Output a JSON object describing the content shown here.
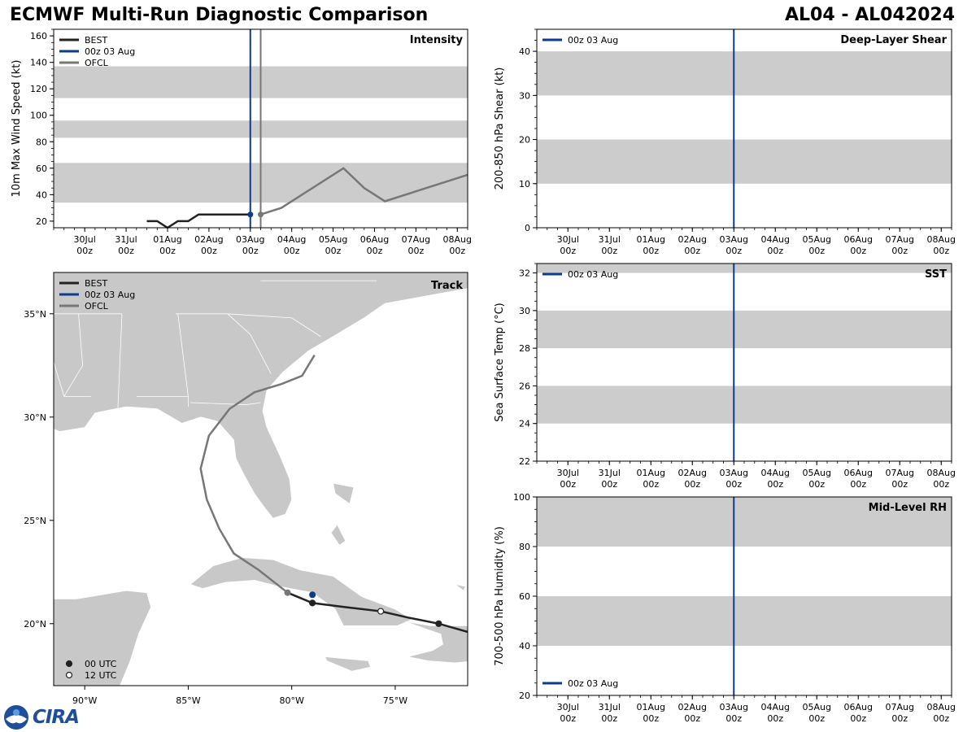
{
  "header": {
    "title": "ECMWF Multi-Run Diagnostic Comparison",
    "storm_id": "AL04 - AL042024"
  },
  "logo": {
    "text": "CIRA"
  },
  "colors": {
    "best": "#222222",
    "run": "#0b3d8c",
    "ofcl": "#777777",
    "band": "#cccccc",
    "land": "#c8c8c8"
  },
  "time_axis": {
    "ticks": [
      {
        "x": 0,
        "label": "30Jul",
        "sub": "00z"
      },
      {
        "x": 1,
        "label": "31Jul",
        "sub": "00z"
      },
      {
        "x": 2,
        "label": "01Aug",
        "sub": "00z"
      },
      {
        "x": 3,
        "label": "02Aug",
        "sub": "00z"
      },
      {
        "x": 4,
        "label": "03Aug",
        "sub": "00z"
      },
      {
        "x": 5,
        "label": "04Aug",
        "sub": "00z"
      },
      {
        "x": 6,
        "label": "05Aug",
        "sub": "00z"
      },
      {
        "x": 7,
        "label": "06Aug",
        "sub": "00z"
      },
      {
        "x": 8,
        "label": "07Aug",
        "sub": "00z"
      },
      {
        "x": 9,
        "label": "08Aug",
        "sub": "00z"
      }
    ],
    "range": [
      -0.75,
      9.25
    ],
    "run_time": 4.0
  },
  "chart_data": [
    {
      "id": "intensity",
      "type": "line",
      "title": "Intensity",
      "ylabel": "10m Max Wind Speed (kt)",
      "ylim": [
        15,
        165
      ],
      "yticks": [
        20,
        40,
        60,
        80,
        100,
        120,
        140,
        160
      ],
      "bands": [
        [
          34,
          64
        ],
        [
          83,
          96
        ],
        [
          113,
          137
        ]
      ],
      "legend": [
        "BEST",
        "00z 03 Aug",
        "OFCL"
      ],
      "best": {
        "x": [
          1.5,
          1.75,
          2.0,
          2.25,
          2.5,
          2.75,
          3.0,
          3.25,
          3.5,
          3.75,
          4.0
        ],
        "y": [
          20,
          20,
          15,
          20,
          20,
          25,
          25,
          25,
          25,
          25,
          25
        ]
      },
      "run_marker": {
        "x": 4.0,
        "y": 25
      },
      "ofcl_vline": 4.25,
      "ofcl": {
        "x": [
          4.25,
          4.75,
          6.25,
          6.75,
          7.25,
          9.25
        ],
        "y": [
          25,
          30,
          60,
          45,
          35,
          55
        ]
      }
    },
    {
      "id": "shear",
      "type": "line",
      "title": "Deep-Layer Shear",
      "ylabel": "200-850 hPa Shear (kt)",
      "ylim": [
        0,
        45
      ],
      "yticks": [
        0,
        10,
        20,
        30,
        40
      ],
      "bands": [
        [
          10,
          20
        ],
        [
          30,
          40
        ]
      ],
      "legend": [
        "00z 03 Aug"
      ]
    },
    {
      "id": "sst",
      "type": "line",
      "title": "SST",
      "ylabel": "Sea Surface Temp (°C)",
      "ylim": [
        22,
        32.5
      ],
      "yticks": [
        22,
        24,
        26,
        28,
        30,
        32
      ],
      "bands": [
        [
          24,
          26
        ],
        [
          28,
          30
        ],
        [
          32,
          32.5
        ]
      ],
      "legend": [
        "00z 03 Aug"
      ]
    },
    {
      "id": "rh",
      "type": "line",
      "title": "Mid-Level RH",
      "ylabel": "700-500 hPa Humidity (%)",
      "ylim": [
        20,
        100
      ],
      "yticks": [
        20,
        40,
        60,
        80,
        100
      ],
      "bands": [
        [
          40,
          60
        ],
        [
          80,
          100
        ]
      ],
      "legend": [
        "00z 03 Aug"
      ]
    },
    {
      "id": "track",
      "type": "scatter",
      "title": "Track",
      "xlim": [
        -91.5,
        -71.5
      ],
      "ylim": [
        17,
        37
      ],
      "xticks": [
        {
          "v": -90,
          "label": "90°W"
        },
        {
          "v": -85,
          "label": "85°W"
        },
        {
          "v": -80,
          "label": "80°W"
        },
        {
          "v": -75,
          "label": "75°W"
        }
      ],
      "yticks": [
        {
          "v": 20,
          "label": "20°N"
        },
        {
          "v": 25,
          "label": "25°N"
        },
        {
          "v": 30,
          "label": "30°N"
        },
        {
          "v": 35,
          "label": "35°N"
        }
      ],
      "legend": [
        "BEST",
        "00z 03 Aug",
        "OFCL"
      ],
      "legend2": [
        "00 UTC",
        "12 UTC"
      ],
      "best": [
        [
          -71.5,
          19.6
        ],
        [
          -72.9,
          20.0
        ],
        [
          -74.4,
          20.3
        ],
        [
          -75.7,
          20.6
        ],
        [
          -77.4,
          20.8
        ],
        [
          -79.0,
          21.0
        ],
        [
          -80.2,
          21.5
        ]
      ],
      "best_dots": [
        {
          "lon": -72.9,
          "lat": 20.0,
          "kind": "00"
        },
        {
          "lon": -75.7,
          "lat": 20.6,
          "kind": "12"
        },
        {
          "lon": -79.0,
          "lat": 21.0,
          "kind": "00"
        }
      ],
      "run_dot": {
        "lon": -79.0,
        "lat": 21.4
      },
      "ofcl": [
        [
          -80.2,
          21.5
        ],
        [
          -81.6,
          22.6
        ],
        [
          -82.8,
          23.4
        ],
        [
          -83.5,
          24.6
        ],
        [
          -84.1,
          26.0
        ],
        [
          -84.4,
          27.5
        ],
        [
          -84.0,
          29.1
        ],
        [
          -83.0,
          30.4
        ],
        [
          -81.8,
          31.2
        ],
        [
          -80.5,
          31.6
        ],
        [
          -79.5,
          32.0
        ],
        [
          -78.9,
          33.0
        ]
      ]
    }
  ]
}
